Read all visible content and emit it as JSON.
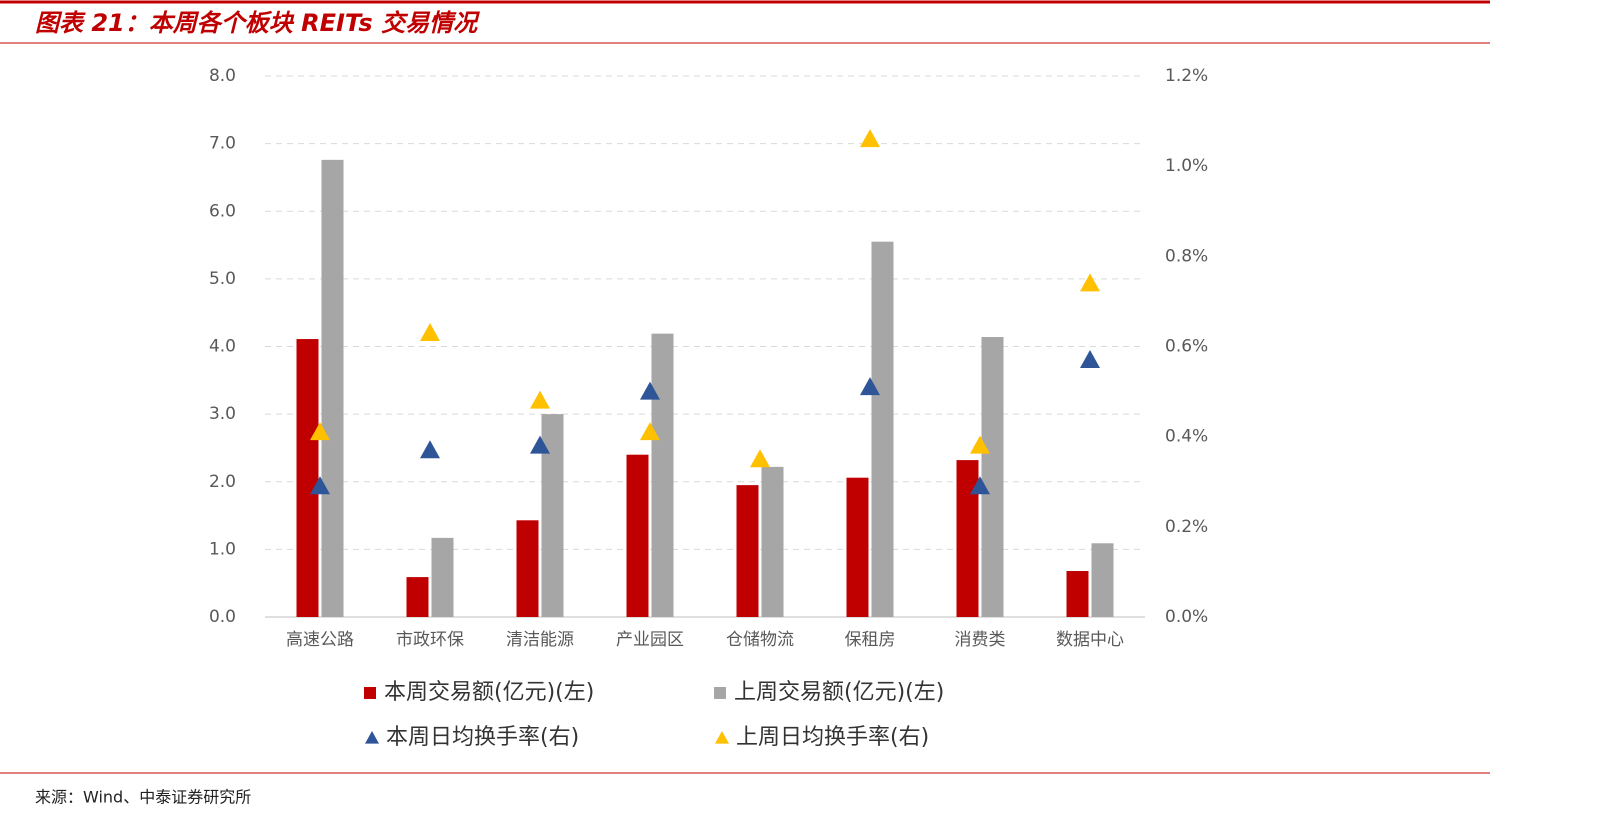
{
  "chart_data": {
    "type": "bar",
    "title": "图表 21：本周各个板块 REITs 交易情况",
    "source": "来源：Wind、中泰证券研究所",
    "categories": [
      "高速公路",
      "市政环保",
      "清洁能源",
      "产业园区",
      "仓储物流",
      "保租房",
      "消费类",
      "数据中心"
    ],
    "series": [
      {
        "name": "本周交易额(亿元)(左)",
        "type": "bar",
        "color": "#c00000",
        "values": [
          4.11,
          0.59,
          1.43,
          2.4,
          1.95,
          2.06,
          2.32,
          0.68
        ]
      },
      {
        "name": "上周交易额(亿元)(左)",
        "type": "bar",
        "color": "#a6a6a6",
        "values": [
          6.76,
          1.17,
          3.0,
          4.19,
          2.22,
          5.55,
          4.14,
          1.09
        ]
      },
      {
        "name": "本周日均换手率(右)",
        "type": "scatter",
        "axis": "y2",
        "color": "#2e5597",
        "values": [
          0.29,
          0.37,
          0.38,
          0.5,
          null,
          0.51,
          0.29,
          0.57
        ]
      },
      {
        "name": "上周日均换手率(右)",
        "type": "scatter",
        "axis": "y2",
        "color": "#ffc000",
        "values": [
          0.41,
          0.63,
          0.48,
          0.41,
          0.35,
          1.06,
          0.38,
          0.74
        ]
      }
    ],
    "ylim": [
      0,
      8
    ],
    "yticks": [
      {
        "value": 0,
        "label": "0.0"
      },
      {
        "value": 1,
        "label": "1.0"
      },
      {
        "value": 2,
        "label": "2.0"
      },
      {
        "value": 3,
        "label": "3.0"
      },
      {
        "value": 4,
        "label": "4.0"
      },
      {
        "value": 5,
        "label": "5.0"
      },
      {
        "value": 6,
        "label": "6.0"
      },
      {
        "value": 7,
        "label": "7.0"
      },
      {
        "value": 8,
        "label": "8.0"
      }
    ],
    "y2lim": [
      0,
      1.2
    ],
    "y2ticks": [
      {
        "value": 0,
        "label": "0.0%"
      },
      {
        "value": 0.2,
        "label": "0.2%"
      },
      {
        "value": 0.4,
        "label": "0.4%"
      },
      {
        "value": 0.6,
        "label": "0.6%"
      },
      {
        "value": 0.8,
        "label": "0.8%"
      },
      {
        "value": 1.0,
        "label": "1.0%"
      },
      {
        "value": 1.2,
        "label": "1.2%"
      }
    ],
    "grid": true
  }
}
